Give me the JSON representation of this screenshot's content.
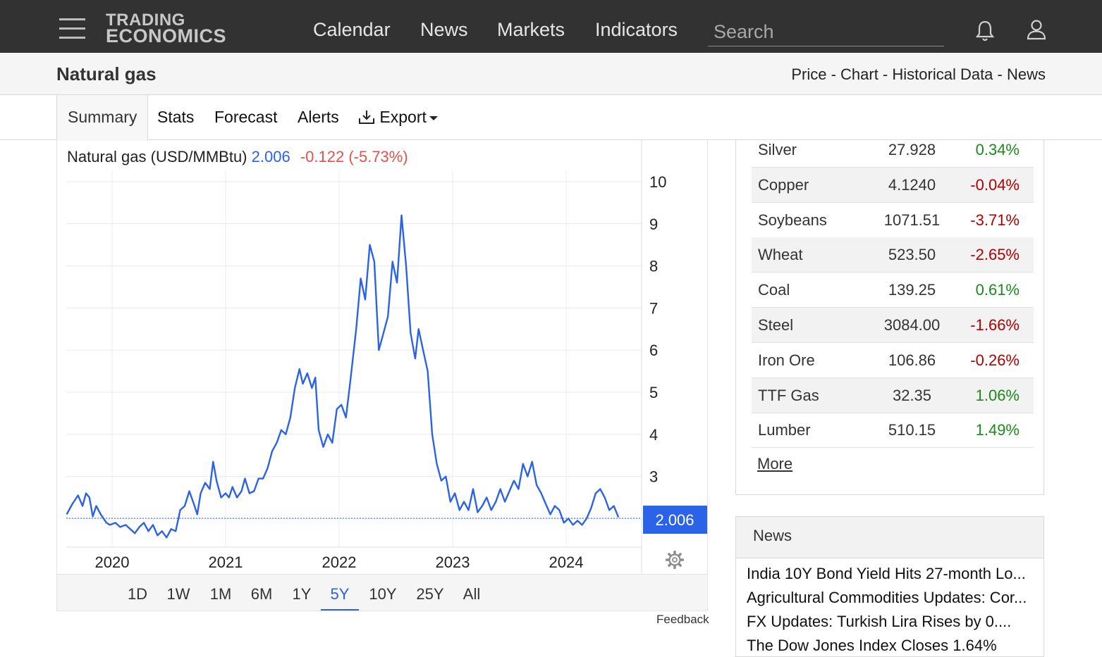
{
  "brand": {
    "line1": "TRADING",
    "line2": "ECONOMICS"
  },
  "nav": {
    "items": [
      {
        "label": "Calendar"
      },
      {
        "label": "News"
      },
      {
        "label": "Markets"
      },
      {
        "label": "Indicators"
      }
    ],
    "search_placeholder": "Search"
  },
  "icons": {
    "menu": "hamburger-icon",
    "bell": "bell-icon",
    "user": "user-icon",
    "download": "download-icon",
    "settings": "gear-icon"
  },
  "page": {
    "title": "Natural gas",
    "breadcrumbs": [
      "Price",
      "Chart",
      "Historical Data",
      "News"
    ],
    "breadcrumb_separator": " - "
  },
  "tabs": [
    {
      "label": "Summary",
      "active": true
    },
    {
      "label": "Stats"
    },
    {
      "label": "Forecast"
    },
    {
      "label": "Alerts"
    },
    {
      "label": "Export"
    }
  ],
  "chart_header": {
    "name": "Natural gas (USD/MMBtu)",
    "value": "2.006",
    "change": "-0.122 (-5.73%)"
  },
  "chart_data": {
    "type": "line",
    "title": "Natural gas (USD/MMBtu)",
    "series": [
      {
        "name": "Natural gas (USD/MMBtu)",
        "color": "#2a62e8"
      }
    ],
    "x_ticks": [
      "2020",
      "2021",
      "2022",
      "2023",
      "2024"
    ],
    "y_ticks": [
      "10",
      "9",
      "8",
      "7",
      "6",
      "5",
      "4",
      "3"
    ],
    "ylim": [
      1,
      10.5
    ],
    "last_value": 2.006,
    "last_value_label": "2.006",
    "points": [
      [
        2019.6,
        2.1
      ],
      [
        2019.65,
        2.35
      ],
      [
        2019.7,
        2.55
      ],
      [
        2019.74,
        2.3
      ],
      [
        2019.77,
        2.6
      ],
      [
        2019.8,
        2.5
      ],
      [
        2019.83,
        2.05
      ],
      [
        2019.86,
        2.3
      ],
      [
        2019.9,
        2.1
      ],
      [
        2019.95,
        1.9
      ],
      [
        2019.98,
        1.85
      ],
      [
        2020.03,
        1.9
      ],
      [
        2020.07,
        1.8
      ],
      [
        2020.12,
        1.85
      ],
      [
        2020.16,
        1.75
      ],
      [
        2020.2,
        1.65
      ],
      [
        2020.24,
        1.8
      ],
      [
        2020.28,
        1.9
      ],
      [
        2020.32,
        1.7
      ],
      [
        2020.36,
        1.85
      ],
      [
        2020.4,
        1.6
      ],
      [
        2020.44,
        1.7
      ],
      [
        2020.48,
        1.55
      ],
      [
        2020.52,
        1.75
      ],
      [
        2020.56,
        1.7
      ],
      [
        2020.6,
        2.2
      ],
      [
        2020.64,
        2.3
      ],
      [
        2020.68,
        2.65
      ],
      [
        2020.72,
        2.35
      ],
      [
        2020.75,
        2.1
      ],
      [
        2020.78,
        2.6
      ],
      [
        2020.82,
        2.85
      ],
      [
        2020.86,
        2.7
      ],
      [
        2020.89,
        3.35
      ],
      [
        2020.92,
        2.9
      ],
      [
        2020.96,
        2.5
      ],
      [
        2021.0,
        2.6
      ],
      [
        2021.03,
        2.5
      ],
      [
        2021.06,
        2.75
      ],
      [
        2021.1,
        2.5
      ],
      [
        2021.14,
        2.65
      ],
      [
        2021.17,
        2.95
      ],
      [
        2021.21,
        2.6
      ],
      [
        2021.25,
        2.65
      ],
      [
        2021.29,
        2.95
      ],
      [
        2021.33,
        2.95
      ],
      [
        2021.37,
        3.2
      ],
      [
        2021.41,
        3.6
      ],
      [
        2021.45,
        3.8
      ],
      [
        2021.49,
        4.1
      ],
      [
        2021.53,
        4.0
      ],
      [
        2021.57,
        4.4
      ],
      [
        2021.61,
        5.1
      ],
      [
        2021.65,
        5.55
      ],
      [
        2021.68,
        5.2
      ],
      [
        2021.72,
        5.45
      ],
      [
        2021.76,
        5.1
      ],
      [
        2021.79,
        5.35
      ],
      [
        2021.82,
        4.1
      ],
      [
        2021.86,
        3.7
      ],
      [
        2021.9,
        4.0
      ],
      [
        2021.94,
        3.8
      ],
      [
        2021.98,
        4.6
      ],
      [
        2022.02,
        4.7
      ],
      [
        2022.06,
        4.4
      ],
      [
        2022.1,
        5.3
      ],
      [
        2022.15,
        6.5
      ],
      [
        2022.19,
        7.7
      ],
      [
        2022.23,
        7.2
      ],
      [
        2022.27,
        8.5
      ],
      [
        2022.31,
        8.1
      ],
      [
        2022.35,
        6.0
      ],
      [
        2022.39,
        6.4
      ],
      [
        2022.43,
        6.8
      ],
      [
        2022.47,
        8.1
      ],
      [
        2022.51,
        7.6
      ],
      [
        2022.55,
        9.2
      ],
      [
        2022.59,
        8.0
      ],
      [
        2022.63,
        6.4
      ],
      [
        2022.67,
        5.8
      ],
      [
        2022.7,
        6.5
      ],
      [
        2022.74,
        6.0
      ],
      [
        2022.78,
        5.5
      ],
      [
        2022.82,
        4.0
      ],
      [
        2022.86,
        3.3
      ],
      [
        2022.9,
        2.9
      ],
      [
        2022.94,
        3.0
      ],
      [
        2022.98,
        2.4
      ],
      [
        2023.02,
        2.6
      ],
      [
        2023.06,
        2.2
      ],
      [
        2023.1,
        2.4
      ],
      [
        2023.14,
        2.2
      ],
      [
        2023.18,
        2.7
      ],
      [
        2023.22,
        2.15
      ],
      [
        2023.26,
        2.3
      ],
      [
        2023.3,
        2.5
      ],
      [
        2023.34,
        2.2
      ],
      [
        2023.38,
        2.4
      ],
      [
        2023.42,
        2.7
      ],
      [
        2023.46,
        2.4
      ],
      [
        2023.5,
        2.65
      ],
      [
        2023.54,
        2.9
      ],
      [
        2023.58,
        2.7
      ],
      [
        2023.62,
        3.3
      ],
      [
        2023.66,
        3.0
      ],
      [
        2023.7,
        3.35
      ],
      [
        2023.74,
        2.8
      ],
      [
        2023.78,
        2.6
      ],
      [
        2023.82,
        2.35
      ],
      [
        2023.86,
        2.1
      ],
      [
        2023.9,
        2.3
      ],
      [
        2023.94,
        2.2
      ],
      [
        2023.98,
        1.9
      ],
      [
        2024.02,
        2.0
      ],
      [
        2024.06,
        1.85
      ],
      [
        2024.1,
        1.95
      ],
      [
        2024.14,
        1.85
      ],
      [
        2024.18,
        2.0
      ],
      [
        2024.22,
        2.25
      ],
      [
        2024.26,
        2.6
      ],
      [
        2024.3,
        2.7
      ],
      [
        2024.34,
        2.5
      ],
      [
        2024.38,
        2.2
      ],
      [
        2024.42,
        2.3
      ],
      [
        2024.46,
        2.03
      ]
    ],
    "grid": true
  },
  "ranges": [
    {
      "label": "1D"
    },
    {
      "label": "1W"
    },
    {
      "label": "1M"
    },
    {
      "label": "6M"
    },
    {
      "label": "1Y"
    },
    {
      "label": "5Y",
      "active": true
    },
    {
      "label": "10Y"
    },
    {
      "label": "25Y"
    },
    {
      "label": "All"
    }
  ],
  "feedback_label": "Feedback",
  "commodities": [
    {
      "name": "Silver",
      "price": "27.928",
      "change": "0.34%",
      "dir": "pos"
    },
    {
      "name": "Copper",
      "price": "4.1240",
      "change": "-0.04%",
      "dir": "neg"
    },
    {
      "name": "Soybeans",
      "price": "1071.51",
      "change": "-3.71%",
      "dir": "neg"
    },
    {
      "name": "Wheat",
      "price": "523.50",
      "change": "-2.65%",
      "dir": "neg"
    },
    {
      "name": "Coal",
      "price": "139.25",
      "change": "0.61%",
      "dir": "pos"
    },
    {
      "name": "Steel",
      "price": "3084.00",
      "change": "-1.66%",
      "dir": "neg"
    },
    {
      "name": "Iron Ore",
      "price": "106.86",
      "change": "-0.26%",
      "dir": "neg"
    },
    {
      "name": "TTF Gas",
      "price": "32.35",
      "change": "1.06%",
      "dir": "pos"
    },
    {
      "name": "Lumber",
      "price": "510.15",
      "change": "1.49%",
      "dir": "pos"
    }
  ],
  "more_label": "More",
  "news": {
    "title": "News",
    "items": [
      "India 10Y Bond Yield Hits 27-month Lo...",
      "Agricultural Commodities Updates: Cor...",
      "FX Updates: Turkish Lira Rises by 0....",
      "The Dow Jones Index Closes 1.64%"
    ]
  },
  "colors": {
    "accent": "#2a62e8",
    "negative_header": "#e0534d",
    "positive": "#1a8a1a",
    "negative": "#b00000",
    "topbar": "#323232"
  }
}
